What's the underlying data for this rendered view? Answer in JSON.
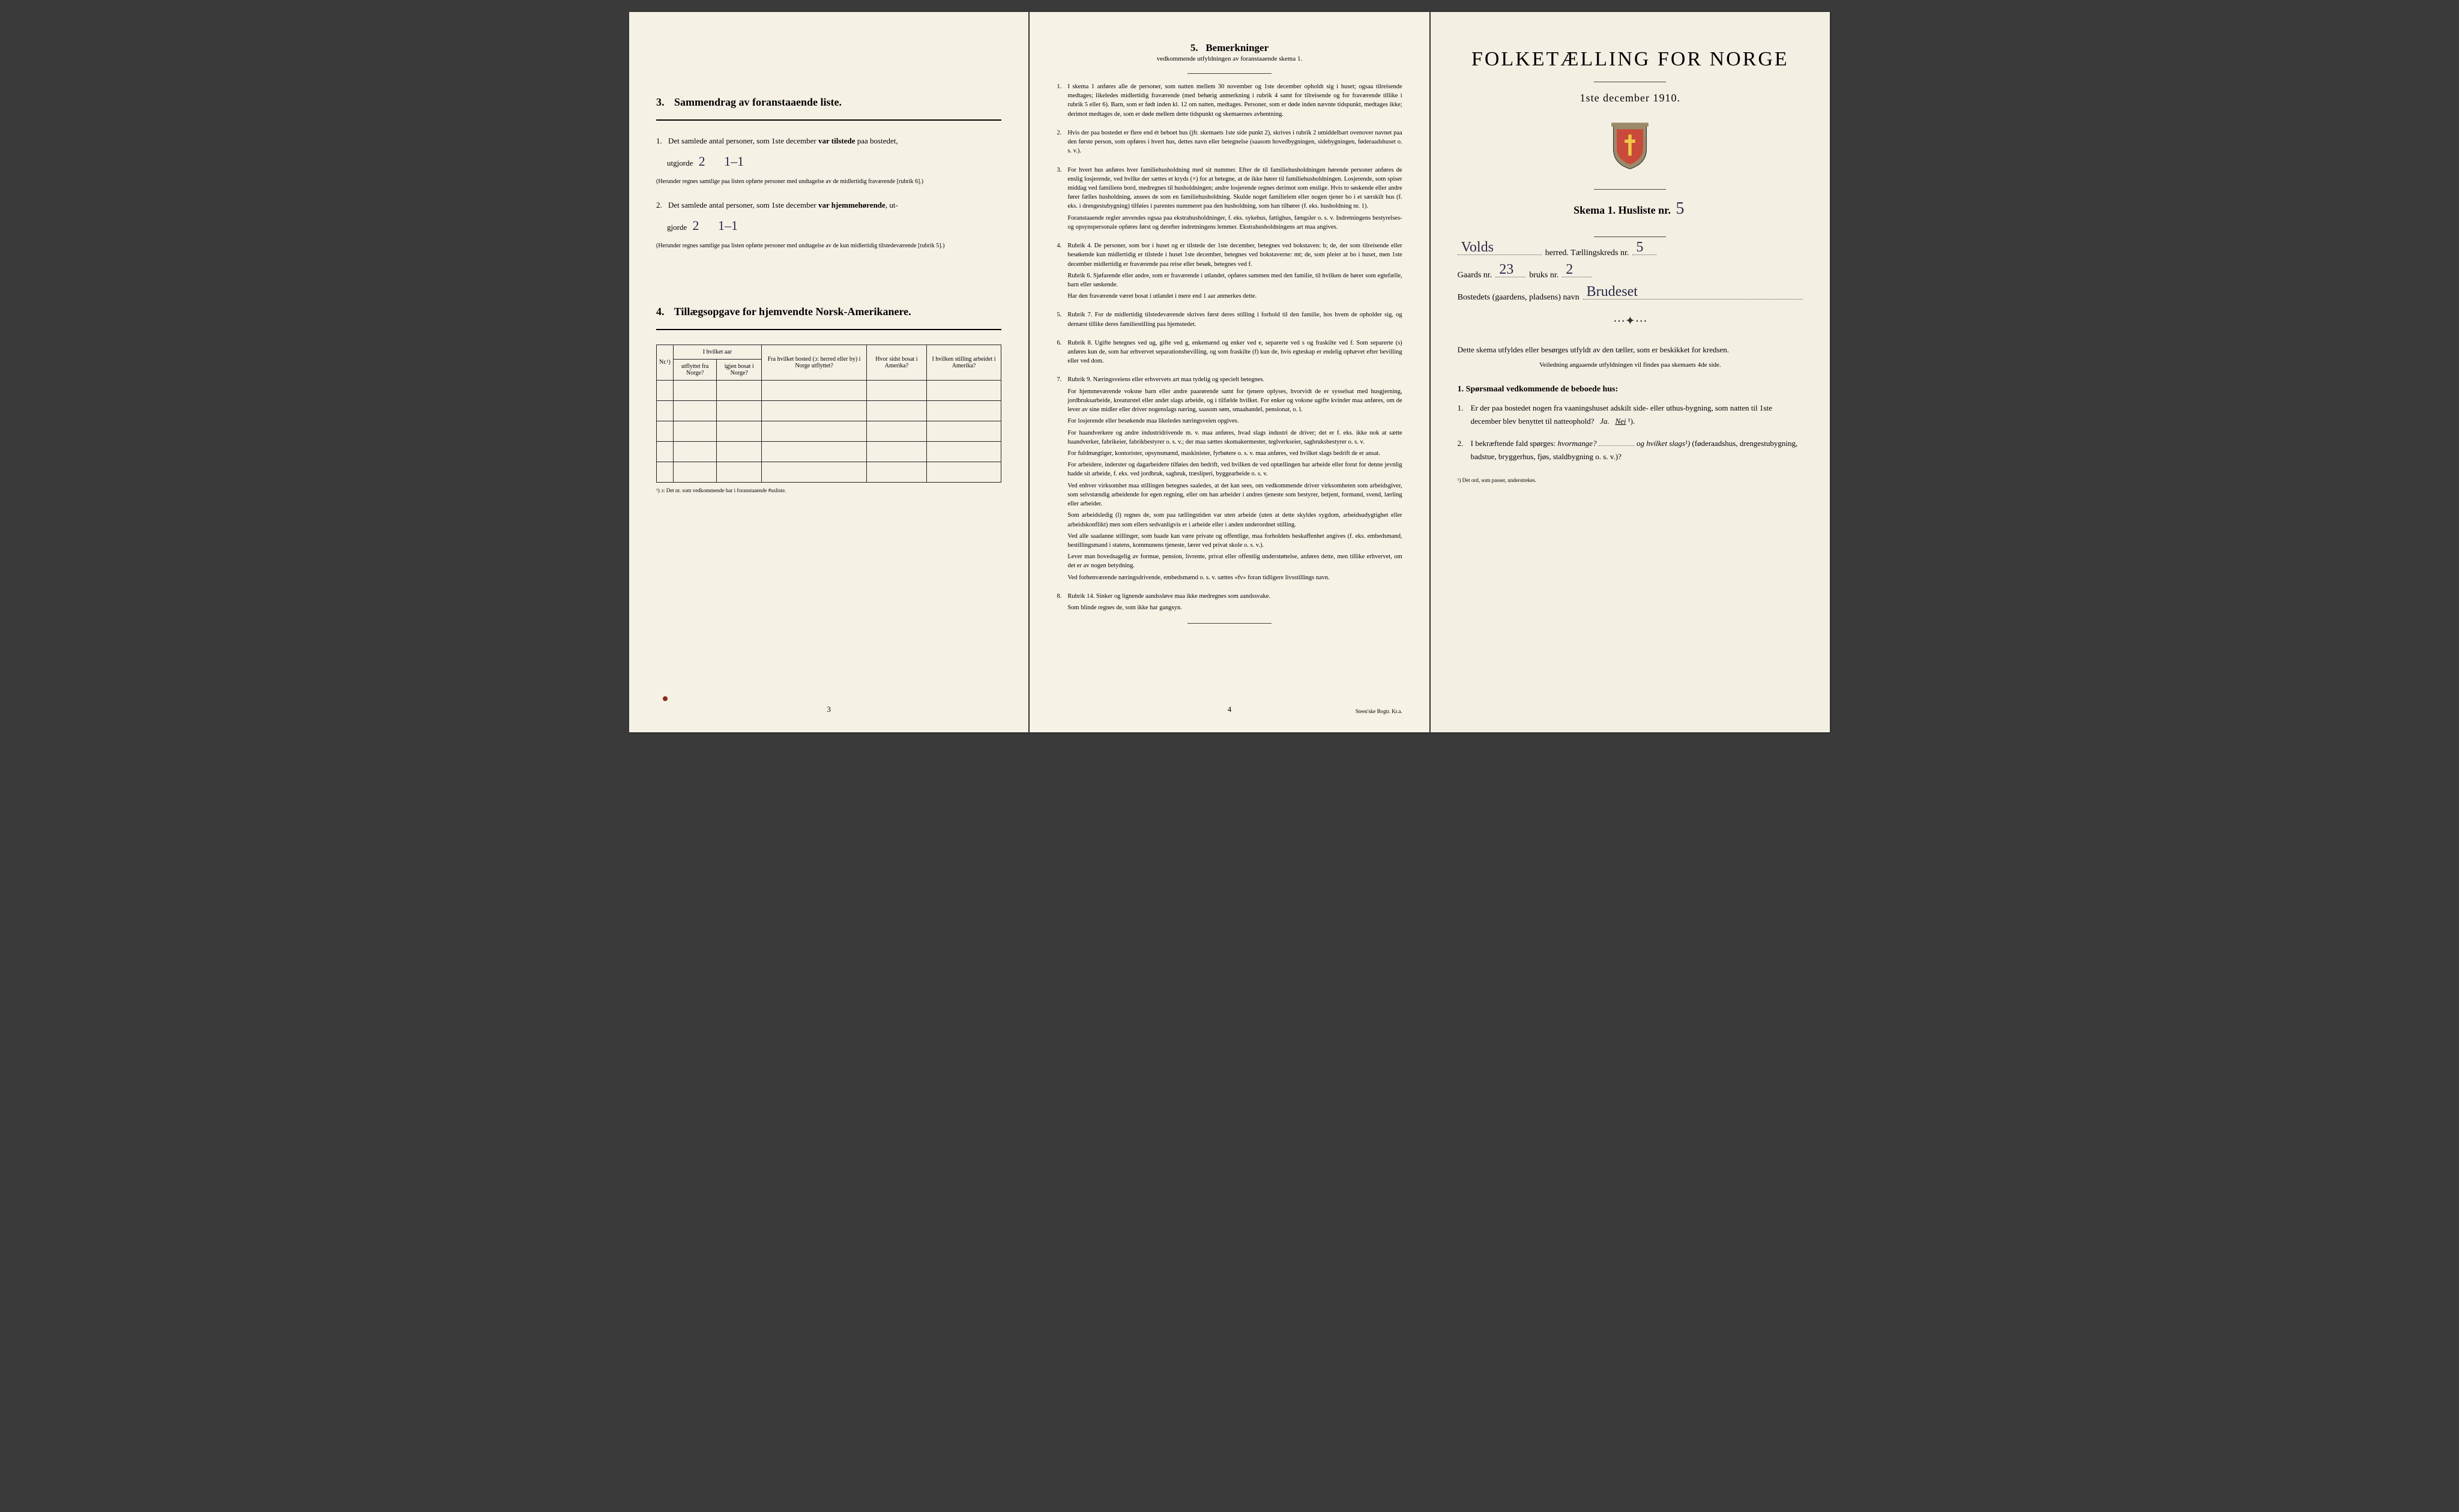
{
  "colors": {
    "paper": "#f4f0e4",
    "ink": "#1a1a1a",
    "handwriting": "#2a2a4a",
    "background": "#3a3a3a"
  },
  "page1": {
    "sec3": {
      "heading_num": "3.",
      "heading": "Sammendrag av foranstaaende liste.",
      "item1_num": "1.",
      "item1_text_a": "Det samlede antal personer, som 1ste december",
      "item1_text_b": "var tilstede",
      "item1_text_c": "paa bostedet,",
      "item1_utgjorde": "utgjorde",
      "item1_val1": "2",
      "item1_val2": "1–1",
      "item1_note": "(Herunder regnes samtlige paa listen opførte personer med undtagelse av de midlertidig fraværende [rubrik 6].)",
      "item2_num": "2.",
      "item2_text_a": "Det samlede antal personer, som 1ste december",
      "item2_text_b": "var hjemmehørende",
      "item2_text_c": ", ut-",
      "item2_gjorde": "gjorde",
      "item2_val1": "2",
      "item2_val2": "1–1",
      "item2_note": "(Herunder regnes samtlige paa listen opførte personer med undtagelse av de kun midlertidig tilstedeværende [rubrik 5].)"
    },
    "sec4": {
      "heading_num": "4.",
      "heading": "Tillægsopgave for hjemvendte Norsk-Amerikanere.",
      "col_nr": "Nr.¹)",
      "col1a": "I hvilket aar",
      "col1b_left": "utflyttet fra Norge?",
      "col1b_right": "igjen bosat i Norge?",
      "col2": "Fra hvilket bosted (ɔ: herred eller by) i Norge utflyttet?",
      "col3": "Hvor sidst bosat i Amerika?",
      "col4": "I hvilken stilling arbeidet i Amerika?",
      "footnote": "¹) ɔ: Det nr. som vedkommende har i foranstaaende #usliste.",
      "row_count": 5
    },
    "page_num": "3"
  },
  "page2": {
    "title_num": "5.",
    "title": "Bemerkninger",
    "subtitle": "vedkommende utfyldningen av foranstaaende skema 1.",
    "items": [
      {
        "n": "1.",
        "p": [
          "I skema 1 anføres alle de personer, som natten mellem 30 november og 1ste december opholdt sig i huset; ogsaa tilreisende medtages; likeledes midlertidig fraværende (med behørig anmerkning i rubrik 4 samt for tilreisende og for fraværende tillike i rubrik 5 eller 6). Barn, som er født inden kl. 12 om natten, medtages. Personer, som er døde inden nævnte tidspunkt, medtages ikke; derimot medtages de, som er døde mellem dette tidspunkt og skemaernes avhentning."
        ]
      },
      {
        "n": "2.",
        "p": [
          "Hvis der paa bostedet er flere end ét beboet hus (jfr. skemaets 1ste side punkt 2), skrives i rubrik 2 umiddelbart ovenover navnet paa den første person, som opføres i hvert hus, dettes navn eller betegnelse (saasom hovedbygningen, sidebygningen, føderaadshuset o. s. v.)."
        ]
      },
      {
        "n": "3.",
        "p": [
          "For hvert hus anføres hver familiehusholdning med sit nummer. Efter de til familiehusholdningen hørende personer anføres de enslig losjerende, ved hvilke der sættes et kryds (×) for at betegne, at de ikke hører til familiehusholdningen. Losjerende, som spiser middag ved familiens bord, medregnes til husholdningen; andre losjerende regnes derimot som enslige. Hvis to søskende eller andre fører fælles husholdning, ansees de som en familiehusholdning. Skulde noget familielem eller nogen tjener bo i et særskilt hus (f. eks. i drengestubygning) tilføies i parentes nummeret paa den husholdning, som han tilhører (f. eks. husholdning nr. 1).",
          "Foranstaaende regler anvendes ogsaa paa ekstrahusholdninger, f. eks. sykehus, fattighus, fængsler o. s. v. Indretningens bestyrelses- og opsynspersonale opføres først og derefter indretningens lemmer. Ekstrahusholdningens art maa angives."
        ]
      },
      {
        "n": "4.",
        "p": [
          "Rubrik 4. De personer, som bor i huset og er tilstede der 1ste december, betegnes ved bokstaven: b; de, der som tilreisende eller besøkende kun midlertidig er tilstede i huset 1ste december, betegnes ved bokstaverne: mt; de, som pleier at bo i huset, men 1ste december midlertidig er fraværende paa reise eller besøk, betegnes ved f.",
          "Rubrik 6. Sjøfarende eller andre, som er fraværende i utlandet, opføres sammen med den familie, til hvilken de hører som egtefælle, barn eller søskende.",
          "Har den fraværende været bosat i utlandet i mere end 1 aar anmerkes dette."
        ]
      },
      {
        "n": "5.",
        "p": [
          "Rubrik 7. For de midlertidig tilstedeværende skrives først deres stilling i forhold til den familie, hos hvem de opholder sig, og dernæst tillike deres familiestilling paa hjemstedet."
        ]
      },
      {
        "n": "6.",
        "p": [
          "Rubrik 8. Ugifte betegnes ved ug, gifte ved g, enkemænd og enker ved e, separerte ved s og fraskilte ved f. Som separerte (s) anføres kun de, som har erhvervet separationsbevilling, og som fraskilte (f) kun de, hvis egteskap er endelig ophævet efter bevilling eller ved dom."
        ]
      },
      {
        "n": "7.",
        "p": [
          "Rubrik 9. Næringsveiens eller erhvervets art maa tydelig og specielt betegnes.",
          "For hjemmeværende voksne barn eller andre paarørende samt for tjenere oplyses, hvorvidt de er sysselsat med husgjerning, jordbruksarbeide, kreaturstel eller andet slags arbeide, og i tilfælde hvilket. For enker og voksne ugifte kvinder maa anføres, om de lever av sine midler eller driver nogenslags næring, saasom søm, smaahandel, pensionat, o. l.",
          "For losjerende eller besøkende maa likeledes næringsveien opgives.",
          "For haandverkere og andre industridrivende m. v. maa anføres, hvad slags industri de driver; det er f. eks. ikke nok at sætte haandverker, fabrikeier, fabrikbestyrer o. s. v.; der maa sættes skomakermester, teglverkseier, sagbruksbestyrer o. s. v.",
          "For fuldmægtiger, kontorister, opsynsmænd, maskinister, fyrbøtere o. s. v. maa anføres, ved hvilket slags bedrift de er ansat.",
          "For arbeidere, inderster og dagarbeidere tilføies den bedrift, ved hvilken de ved optællingen har arbeide eller forut for denne jevnlig hadde sit arbeide, f. eks. ved jordbruk, sagbruk, træsliperi, byggearbeide o. s. v.",
          "Ved enhver virksomhet maa stillingen betegnes saaledes, at det kan sees, om vedkommende driver virksomheten som arbeidsgiver, som selvstændig arbeidende for egen regning, eller om han arbeider i andres tjeneste som bestyrer, betjent, formand, svend, lærling eller arbeider.",
          "Som arbeidsledig (l) regnes de, som paa tællingstiden var uten arbeide (uten at dette skyldes sygdom, arbeidsudygtighet eller arbeidskonflikt) men som ellers sedvanligvis er i arbeide eller i anden underordnet stilling.",
          "Ved alle saadanne stillinger, som baade kan være private og offentlige, maa forholdets beskaffenhet angives (f. eks. embedsmand, bestillingsmand i statens, kommunens tjeneste, lærer ved privat skole o. s. v.).",
          "Lever man hovedsagelig av formue, pension, livrente, privat eller offentlig understøttelse, anføres dette, men tillike erhvervet, om det er av nogen betydning.",
          "Ved forhenværende næringsdrivende, embedsmænd o. s. v. sættes «fv» foran tidligere livsstillings navn."
        ]
      },
      {
        "n": "8.",
        "p": [
          "Rubrik 14. Sinker og lignende aandssløve maa ikke medregnes som aandssvake.",
          "Som blinde regnes de, som ikke har gangsyn."
        ]
      }
    ],
    "page_num": "4",
    "printer": "Steen'ske Bogtr. Kr.a."
  },
  "page3": {
    "main_title": "FOLKETÆLLING FOR NORGE",
    "date": "1ste december 1910.",
    "skema_label": "Skema 1.   Husliste nr.",
    "skema_nr": "5",
    "herred_val": "Volds",
    "herred_label": "herred.  Tællingskreds nr.",
    "taelling_nr": "5",
    "gaards_label_a": "Gaards nr.",
    "gaards_nr": "23",
    "gaards_label_b": "bruks nr.",
    "bruks_nr": "2",
    "bosted_label": "Bostedets (gaardens, pladsens) navn",
    "bosted_val": "Brudeset",
    "instruct1": "Dette skema utfyldes eller besørges utfyldt av den tæller, som er beskikket for kredsen.",
    "instruct2": "Veiledning angaaende utfyldningen vil findes paa skemaets 4de side.",
    "q_head_num": "1.",
    "q_head": "Spørsmaal vedkommende de beboede hus:",
    "q1_num": "1.",
    "q1_text": "Er der paa bostedet nogen fra vaaningshuset adskilt side- eller uthus-bygning, som natten til 1ste december blev benyttet til natteophold?",
    "q1_ja": "Ja.",
    "q1_nei": "Nei",
    "q1_sup": "¹).",
    "q2_num": "2.",
    "q2_text_a": "I bekræftende fald spørges:",
    "q2_hvormange": "hvormange?",
    "q2_text_b": "og hvilket slags¹)",
    "q2_text_c": "(føderaadshus, drengestubygning, badstue, bryggerhus, fjøs, staldbygning o. s. v.)?",
    "footnote": "¹) Det ord, som passer, understrekes."
  }
}
